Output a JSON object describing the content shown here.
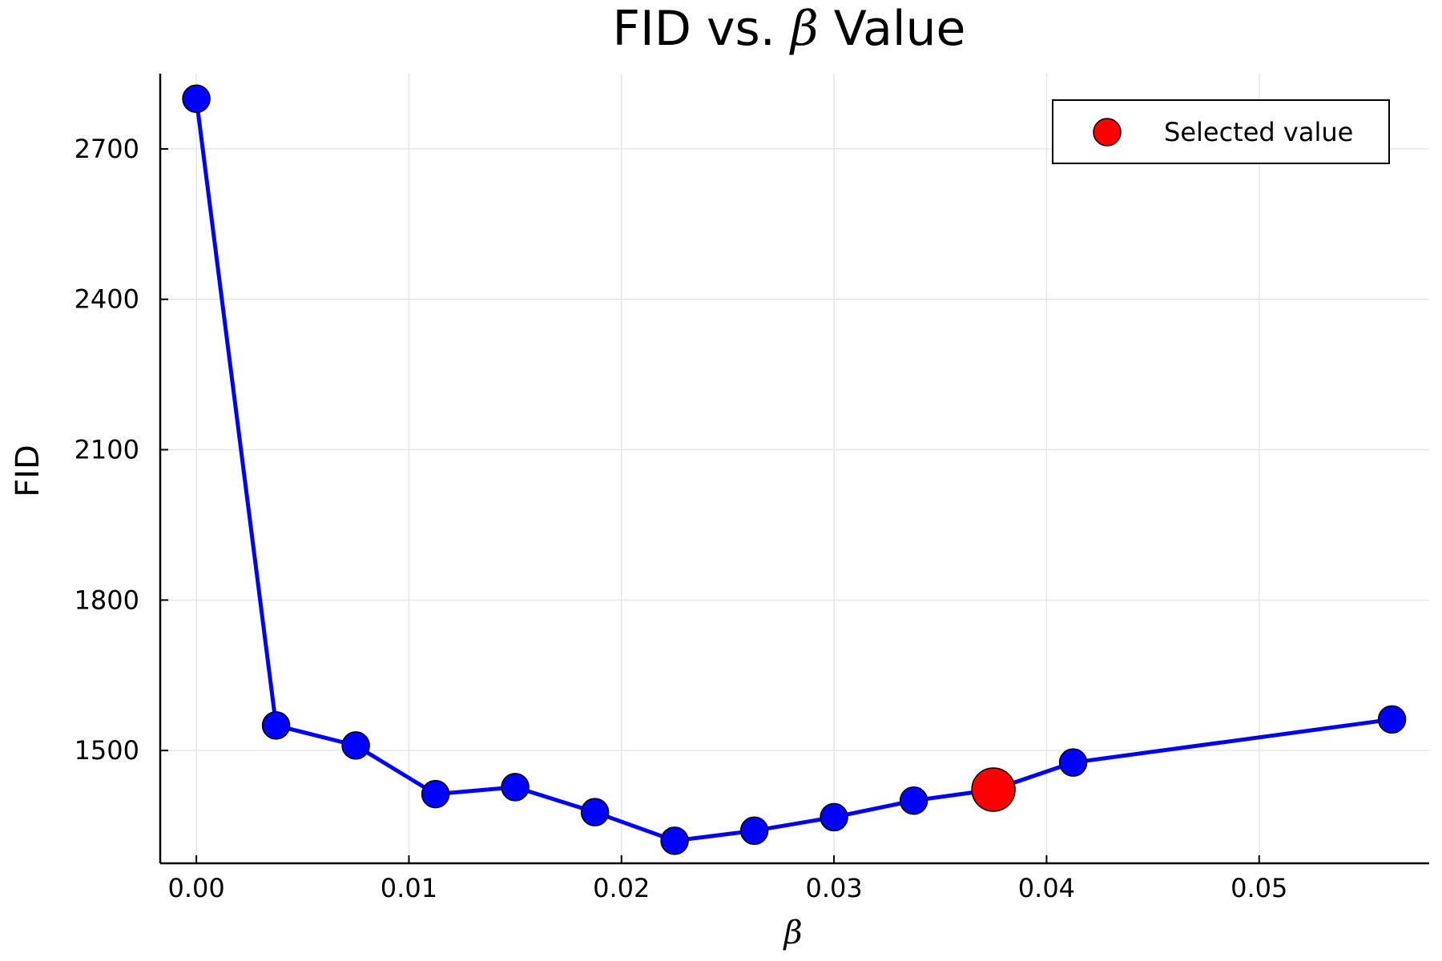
{
  "chart_data": {
    "type": "line",
    "title_prefix": "FID vs. ",
    "title_symbol": "β",
    "title_suffix": " Value",
    "xlabel": "β",
    "ylabel": "FID",
    "xlim": [
      -0.0017,
      0.058
    ],
    "ylim": [
      1275,
      2850
    ],
    "x_ticks": [
      0.0,
      0.01,
      0.02,
      0.03,
      0.04,
      0.05
    ],
    "x_tick_labels": [
      "0.00",
      "0.01",
      "0.02",
      "0.03",
      "0.04",
      "0.05"
    ],
    "y_ticks": [
      1500,
      1800,
      2100,
      2400,
      2700
    ],
    "y_tick_labels": [
      "1500",
      "1800",
      "2100",
      "2400",
      "2700"
    ],
    "grid": true,
    "legend_position": "top-right",
    "series": [
      {
        "values": [
          {
            "x": 0.0,
            "y": 2800
          },
          {
            "x": 0.00375,
            "y": 1550
          },
          {
            "x": 0.0075,
            "y": 1510
          },
          {
            "x": 0.01125,
            "y": 1413
          },
          {
            "x": 0.015,
            "y": 1427
          },
          {
            "x": 0.01875,
            "y": 1377
          },
          {
            "x": 0.0225,
            "y": 1320
          },
          {
            "x": 0.02625,
            "y": 1340
          },
          {
            "x": 0.03,
            "y": 1367
          },
          {
            "x": 0.03375,
            "y": 1400
          },
          {
            "x": 0.0375,
            "y": 1422
          },
          {
            "x": 0.04125,
            "y": 1476
          },
          {
            "x": 0.05625,
            "y": 1562
          }
        ],
        "line_color": "#0000ff",
        "marker_color": "#0000ff"
      },
      {
        "name": "Selected value",
        "values": [
          {
            "x": 0.0375,
            "y": 1422
          }
        ],
        "marker_color": "#ff0000"
      }
    ]
  }
}
